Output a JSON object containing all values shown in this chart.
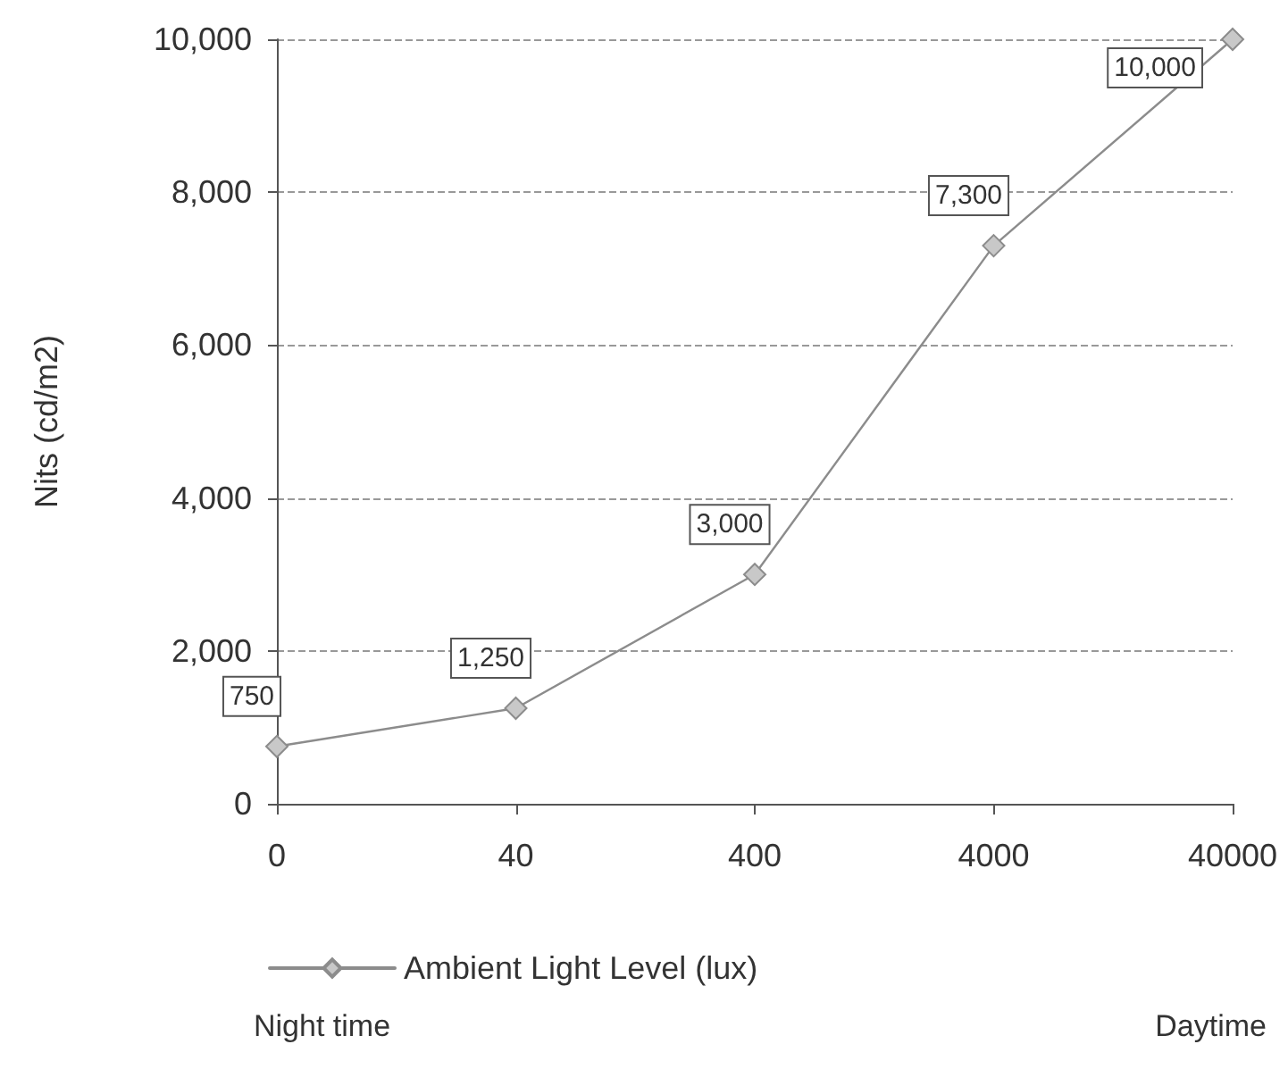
{
  "chart_data": {
    "type": "line",
    "ylabel": "Nits (cd/m2)",
    "categories": [
      "0",
      "40",
      "400",
      "4000",
      "40000"
    ],
    "series": [
      {
        "name": "Ambient Light Level (lux)",
        "color": "#8c8c8c",
        "values": [
          750,
          1250,
          3000,
          7300,
          10000
        ],
        "value_labels": [
          "750",
          "1,250",
          "3,000",
          "7,300",
          "10,000"
        ]
      }
    ],
    "ylim": [
      0,
      10000
    ],
    "yticks": [
      0,
      {
        "value": 2000,
        "label": "2,000"
      },
      {
        "value": 4000,
        "label": "4,000"
      },
      {
        "value": 6000,
        "label": "6,000"
      },
      {
        "value": 8000,
        "label": "8,000"
      },
      {
        "value": 10000,
        "label": "10,000"
      }
    ],
    "grid": "y",
    "legend": "bottom",
    "marker": "diamond",
    "line_style": "solid",
    "annotations": [
      "Night time",
      "Daytime"
    ]
  }
}
